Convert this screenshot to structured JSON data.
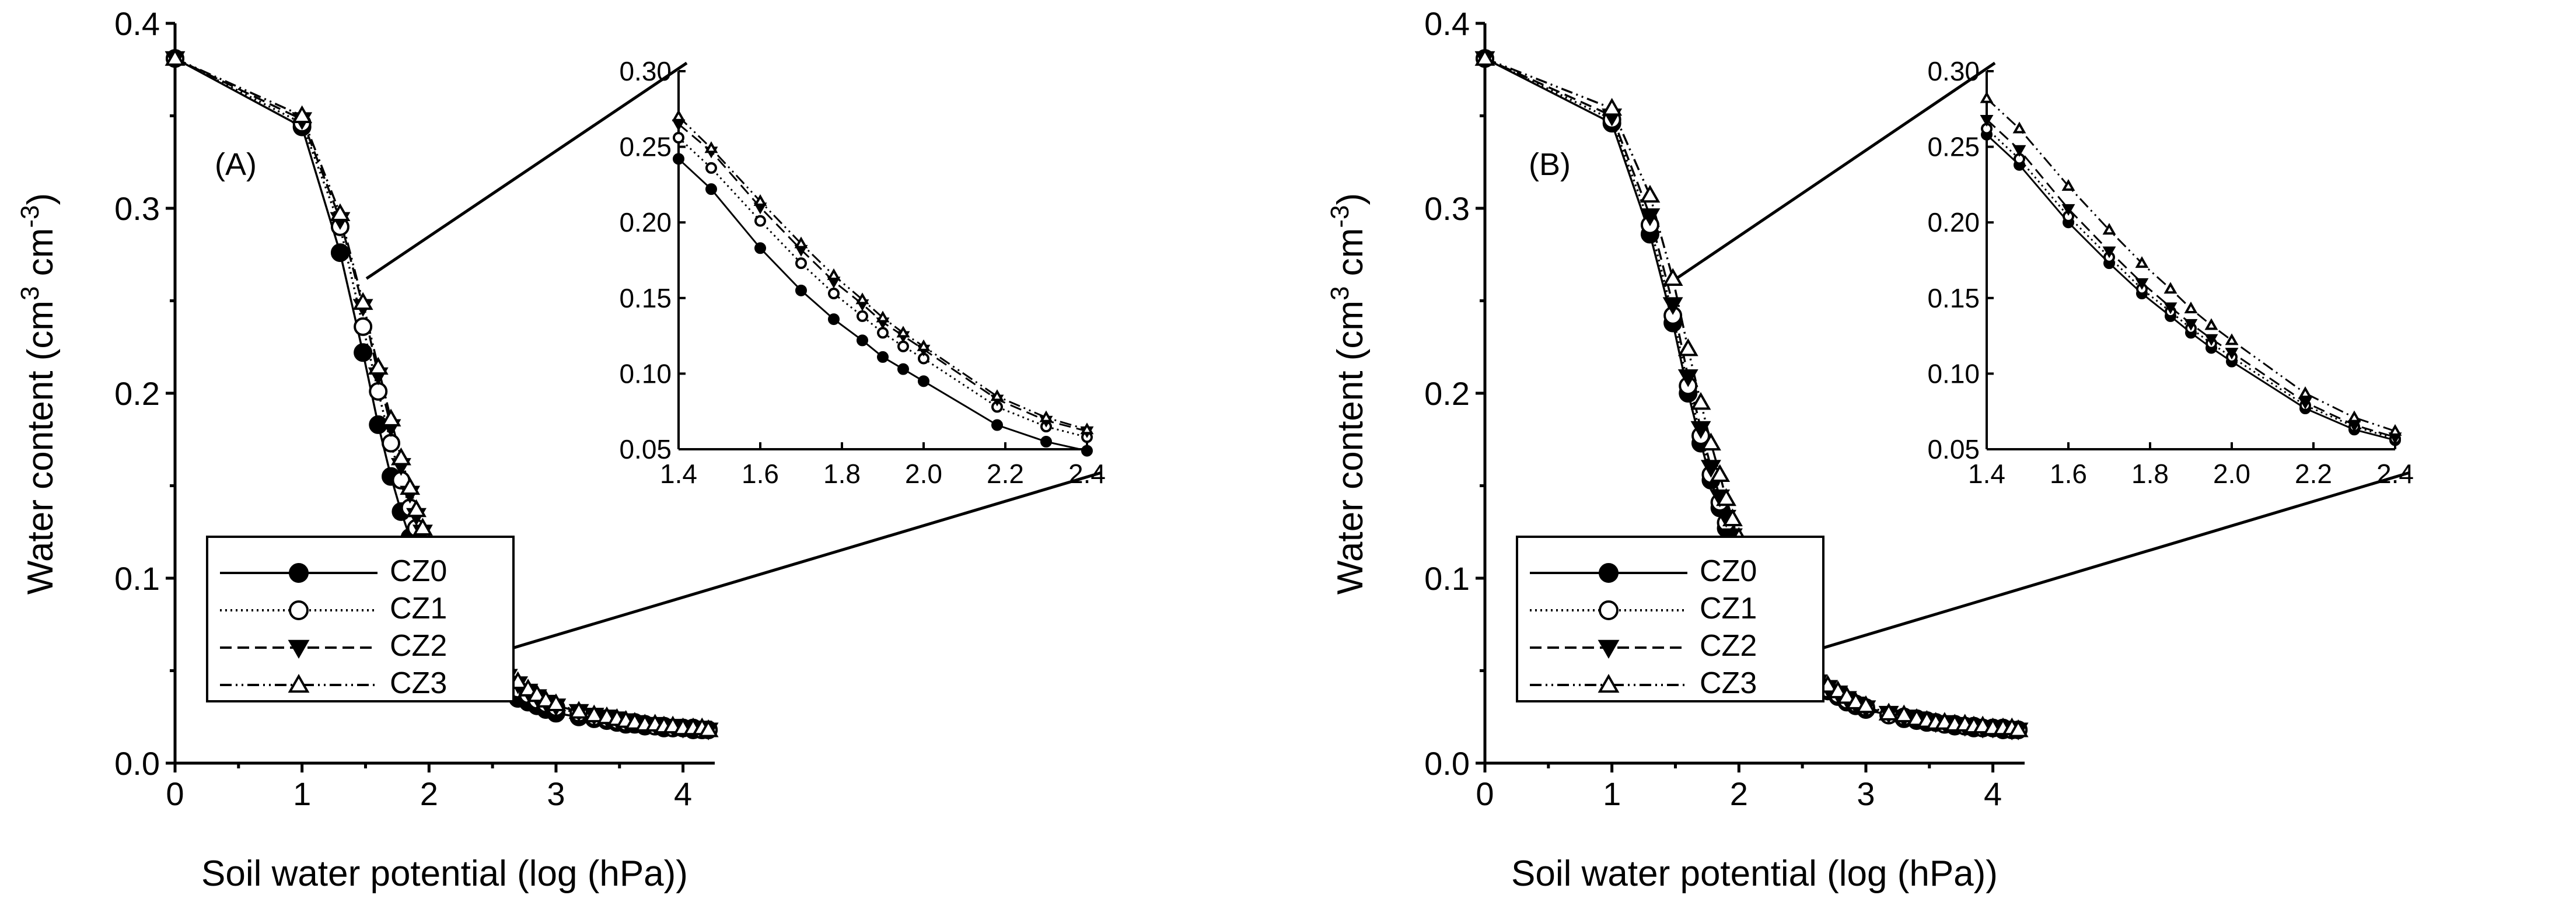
{
  "chart_data": [
    {
      "type": "line",
      "panel_label": "(A)",
      "xlabel": "Soil water potential (log (hPa))",
      "ylabel_main": "Water content (cm",
      "ylabel_sup1": "3",
      "ylabel_mid": " cm",
      "ylabel_sup2": "-3",
      "ylabel_end": ")",
      "xlim": [
        0,
        4.25
      ],
      "ylim": [
        0,
        0.4
      ],
      "xticks": [
        0,
        1,
        2,
        3,
        4
      ],
      "xtick_labels": [
        "0",
        "1",
        "2",
        "3",
        "4"
      ],
      "yticks": [
        0,
        0.1,
        0.2,
        0.3,
        0.4
      ],
      "ytick_labels": [
        "0.0",
        "0.1",
        "0.2",
        "0.3",
        "0.4"
      ],
      "x": [
        0,
        1,
        1.3,
        1.48,
        1.6,
        1.7,
        1.78,
        1.85,
        1.9,
        1.95,
        2.0,
        2.18,
        2.3,
        2.4,
        2.48,
        2.55,
        2.62,
        2.7,
        2.78,
        2.85,
        2.92,
        3.0,
        3.18,
        3.3,
        3.4,
        3.48,
        3.55,
        3.62,
        3.7,
        3.78,
        3.85,
        3.92,
        4.0,
        4.08,
        4.15,
        4.2
      ],
      "series": [
        {
          "name": "CZ0",
          "marker": "filled-circle",
          "dash": "",
          "values": [
            0.381,
            0.344,
            0.276,
            0.222,
            0.183,
            0.155,
            0.136,
            0.122,
            0.111,
            0.103,
            0.095,
            0.066,
            0.055,
            0.049,
            0.045,
            0.041,
            0.038,
            0.035,
            0.033,
            0.031,
            0.029,
            0.027,
            0.025,
            0.024,
            0.023,
            0.022,
            0.021,
            0.021,
            0.02,
            0.02,
            0.019,
            0.019,
            0.019,
            0.018,
            0.018,
            0.018
          ]
        },
        {
          "name": "CZ1",
          "marker": "open-circle",
          "dash": "3,6",
          "values": [
            0.381,
            0.346,
            0.29,
            0.236,
            0.201,
            0.173,
            0.153,
            0.138,
            0.127,
            0.118,
            0.11,
            0.078,
            0.065,
            0.058,
            0.052,
            0.048,
            0.044,
            0.04,
            0.037,
            0.034,
            0.032,
            0.03,
            0.027,
            0.025,
            0.024,
            0.023,
            0.022,
            0.022,
            0.021,
            0.02,
            0.02,
            0.019,
            0.019,
            0.019,
            0.018,
            0.018
          ]
        },
        {
          "name": "CZ2",
          "marker": "filled-triangle-down",
          "dash": "20,10",
          "values": [
            0.381,
            0.348,
            0.294,
            0.247,
            0.21,
            0.182,
            0.161,
            0.146,
            0.134,
            0.125,
            0.116,
            0.083,
            0.069,
            0.062,
            0.056,
            0.051,
            0.047,
            0.043,
            0.039,
            0.036,
            0.033,
            0.031,
            0.028,
            0.026,
            0.025,
            0.024,
            0.023,
            0.022,
            0.021,
            0.021,
            0.02,
            0.02,
            0.019,
            0.019,
            0.019,
            0.018
          ]
        },
        {
          "name": "CZ3",
          "marker": "open-triangle-up",
          "dash": "20,7,3,7,3,7",
          "values": [
            0.381,
            0.35,
            0.297,
            0.249,
            0.214,
            0.186,
            0.165,
            0.149,
            0.137,
            0.127,
            0.118,
            0.085,
            0.071,
            0.063,
            0.057,
            0.052,
            0.048,
            0.044,
            0.04,
            0.037,
            0.034,
            0.032,
            0.028,
            0.026,
            0.025,
            0.024,
            0.023,
            0.022,
            0.021,
            0.021,
            0.02,
            0.02,
            0.019,
            0.019,
            0.019,
            0.018
          ]
        }
      ],
      "inset": {
        "xlim": [
          1.4,
          2.4
        ],
        "ylim": [
          0.05,
          0.3
        ],
        "xticks": [
          1.4,
          1.6,
          1.8,
          2.0,
          2.2,
          2.4
        ],
        "xtick_labels": [
          "1.4",
          "1.6",
          "1.8",
          "2.0",
          "2.2",
          "2.4"
        ],
        "yticks": [
          0.05,
          0.1,
          0.15,
          0.2,
          0.25,
          0.3
        ],
        "ytick_labels": [
          "0.05",
          "0.10",
          "0.15",
          "0.20",
          "0.25",
          "0.30"
        ],
        "x": [
          1.4,
          1.48,
          1.6,
          1.7,
          1.78,
          1.85,
          1.9,
          1.95,
          2.0,
          2.18,
          2.3,
          2.4
        ],
        "series": [
          {
            "name": "CZ0",
            "values": [
              0.242,
              0.222,
              0.183,
              0.155,
              0.136,
              0.122,
              0.111,
              0.103,
              0.095,
              0.066,
              0.055,
              0.049
            ]
          },
          {
            "name": "CZ1",
            "values": [
              0.256,
              0.236,
              0.201,
              0.173,
              0.153,
              0.138,
              0.127,
              0.118,
              0.11,
              0.078,
              0.065,
              0.058
            ]
          },
          {
            "name": "CZ2",
            "values": [
              0.265,
              0.247,
              0.21,
              0.182,
              0.161,
              0.146,
              0.134,
              0.125,
              0.116,
              0.083,
              0.069,
              0.062
            ]
          },
          {
            "name": "CZ3",
            "values": [
              0.27,
              0.249,
              0.214,
              0.186,
              0.165,
              0.149,
              0.137,
              0.127,
              0.118,
              0.085,
              0.071,
              0.063
            ]
          }
        ]
      },
      "legend": [
        "CZ0",
        "CZ1",
        "CZ2",
        "CZ3"
      ],
      "legend_position": "bottom-left",
      "grid": false
    },
    {
      "type": "line",
      "panel_label": "(B)",
      "xlabel": "Soil water potential (log (hPa))",
      "ylabel_main": "Water content (cm",
      "ylabel_sup1": "3",
      "ylabel_mid": " cm",
      "ylabel_sup2": "-3",
      "ylabel_end": ")",
      "xlim": [
        0,
        4.25
      ],
      "ylim": [
        0,
        0.4
      ],
      "xticks": [
        0,
        1,
        2,
        3,
        4
      ],
      "xtick_labels": [
        "0",
        "1",
        "2",
        "3",
        "4"
      ],
      "yticks": [
        0,
        0.1,
        0.2,
        0.3,
        0.4
      ],
      "ytick_labels": [
        "0.0",
        "0.1",
        "0.2",
        "0.3",
        "0.4"
      ],
      "x": [
        0,
        1,
        1.3,
        1.48,
        1.6,
        1.7,
        1.78,
        1.85,
        1.9,
        1.95,
        2.0,
        2.18,
        2.3,
        2.4,
        2.48,
        2.55,
        2.62,
        2.7,
        2.78,
        2.85,
        2.92,
        3.0,
        3.18,
        3.3,
        3.4,
        3.48,
        3.55,
        3.62,
        3.7,
        3.78,
        3.85,
        3.92,
        4.0,
        4.08,
        4.15,
        4.2
      ],
      "series": [
        {
          "name": "CZ0",
          "marker": "filled-circle",
          "dash": "",
          "values": [
            0.381,
            0.346,
            0.286,
            0.238,
            0.2,
            0.173,
            0.153,
            0.138,
            0.127,
            0.117,
            0.108,
            0.077,
            0.063,
            0.056,
            0.05,
            0.046,
            0.042,
            0.039,
            0.036,
            0.033,
            0.031,
            0.029,
            0.026,
            0.024,
            0.023,
            0.022,
            0.022,
            0.021,
            0.02,
            0.02,
            0.019,
            0.019,
            0.019,
            0.018,
            0.018,
            0.018
          ]
        },
        {
          "name": "CZ1",
          "marker": "open-circle",
          "dash": "3,6",
          "values": [
            0.381,
            0.348,
            0.291,
            0.242,
            0.204,
            0.177,
            0.156,
            0.141,
            0.13,
            0.12,
            0.111,
            0.079,
            0.065,
            0.057,
            0.051,
            0.047,
            0.043,
            0.04,
            0.037,
            0.034,
            0.032,
            0.03,
            0.026,
            0.025,
            0.024,
            0.023,
            0.022,
            0.021,
            0.021,
            0.02,
            0.02,
            0.019,
            0.019,
            0.019,
            0.018,
            0.018
          ]
        },
        {
          "name": "CZ2",
          "marker": "filled-triangle-down",
          "dash": "20,10",
          "values": [
            0.381,
            0.35,
            0.296,
            0.248,
            0.209,
            0.181,
            0.16,
            0.144,
            0.133,
            0.123,
            0.114,
            0.081,
            0.066,
            0.058,
            0.052,
            0.048,
            0.044,
            0.041,
            0.038,
            0.035,
            0.032,
            0.03,
            0.027,
            0.025,
            0.024,
            0.023,
            0.022,
            0.022,
            0.021,
            0.02,
            0.02,
            0.019,
            0.019,
            0.019,
            0.018,
            0.018
          ]
        },
        {
          "name": "CZ3",
          "marker": "open-triangle-up",
          "dash": "20,7,3,7,3,7",
          "values": [
            0.381,
            0.354,
            0.307,
            0.262,
            0.224,
            0.195,
            0.173,
            0.156,
            0.143,
            0.132,
            0.122,
            0.087,
            0.071,
            0.062,
            0.055,
            0.05,
            0.046,
            0.042,
            0.039,
            0.036,
            0.033,
            0.031,
            0.027,
            0.026,
            0.024,
            0.023,
            0.022,
            0.022,
            0.021,
            0.021,
            0.02,
            0.02,
            0.019,
            0.019,
            0.019,
            0.018
          ]
        }
      ],
      "inset": {
        "xlim": [
          1.4,
          2.4
        ],
        "ylim": [
          0.05,
          0.3
        ],
        "xticks": [
          1.4,
          1.6,
          1.8,
          2.0,
          2.2,
          2.4
        ],
        "xtick_labels": [
          "1.4",
          "1.6",
          "1.8",
          "2.0",
          "2.2",
          "2.4"
        ],
        "yticks": [
          0.05,
          0.1,
          0.15,
          0.2,
          0.25,
          0.3
        ],
        "ytick_labels": [
          "0.05",
          "0.10",
          "0.15",
          "0.20",
          "0.25",
          "0.30"
        ],
        "x": [
          1.4,
          1.48,
          1.6,
          1.7,
          1.78,
          1.85,
          1.9,
          1.95,
          2.0,
          2.18,
          2.3,
          2.4
        ],
        "series": [
          {
            "name": "CZ0",
            "values": [
              0.258,
              0.238,
              0.2,
              0.173,
              0.153,
              0.138,
              0.127,
              0.117,
              0.108,
              0.077,
              0.063,
              0.056
            ]
          },
          {
            "name": "CZ1",
            "values": [
              0.262,
              0.242,
              0.204,
              0.177,
              0.156,
              0.141,
              0.13,
              0.12,
              0.111,
              0.079,
              0.065,
              0.057
            ]
          },
          {
            "name": "CZ2",
            "values": [
              0.268,
              0.248,
              0.209,
              0.181,
              0.16,
              0.144,
              0.133,
              0.123,
              0.114,
              0.081,
              0.066,
              0.058
            ]
          },
          {
            "name": "CZ3",
            "values": [
              0.282,
              0.262,
              0.224,
              0.195,
              0.173,
              0.156,
              0.143,
              0.132,
              0.122,
              0.087,
              0.071,
              0.062
            ]
          }
        ]
      },
      "legend": [
        "CZ0",
        "CZ1",
        "CZ2",
        "CZ3"
      ],
      "legend_position": "bottom-left",
      "grid": false
    }
  ]
}
